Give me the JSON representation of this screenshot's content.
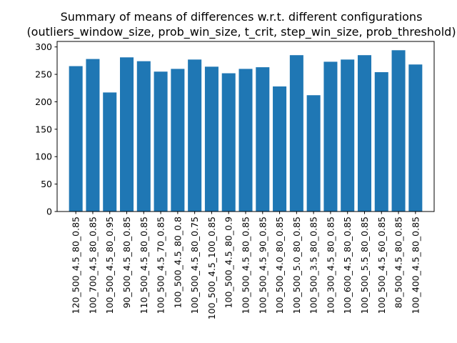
{
  "chart_data": {
    "type": "bar",
    "title_line1": "Summary of means of differences w.r.t. different configurations",
    "title_line2": "(outliers_window_size, prob_win_size, t_crit, step_win_size, prob_threshold)",
    "xlabel": "",
    "ylabel": "",
    "ylim": [
      0,
      310
    ],
    "yticks": [
      0,
      50,
      100,
      150,
      200,
      250,
      300
    ],
    "grid": false,
    "bar_color": "#1f77b4",
    "categories": [
      "120_500_4.5_80_0.85",
      "100_700_4.5_80_0.85",
      "100_500_4.5_80_0.95",
      "90_500_4.5_80_0.85",
      "110_500_4.5_80_0.85",
      "100_500_4.5_70_0.85",
      "100_500_4.5_80_0.8",
      "100_500_4.5_80_0.75",
      "100_500_4.5_100_0.85",
      "100_500_4.5_80_0.9",
      "100_500_4.5_80_0.85",
      "100_500_4.5_90_0.85",
      "100_500_4.0_80_0.85",
      "100_500_5.0_80_0.85",
      "100_500_3.5_80_0.85",
      "100_300_4.5_80_0.85",
      "100_600_4.5_80_0.85",
      "100_500_5.5_80_0.85",
      "100_500_4.5_60_0.85",
      "80_500_4.5_80_0.85",
      "100_400_4.5_80_0.85"
    ],
    "values": [
      265,
      278,
      217,
      281,
      274,
      255,
      260,
      277,
      264,
      252,
      260,
      263,
      228,
      285,
      212,
      273,
      277,
      285,
      254,
      294,
      268
    ]
  }
}
